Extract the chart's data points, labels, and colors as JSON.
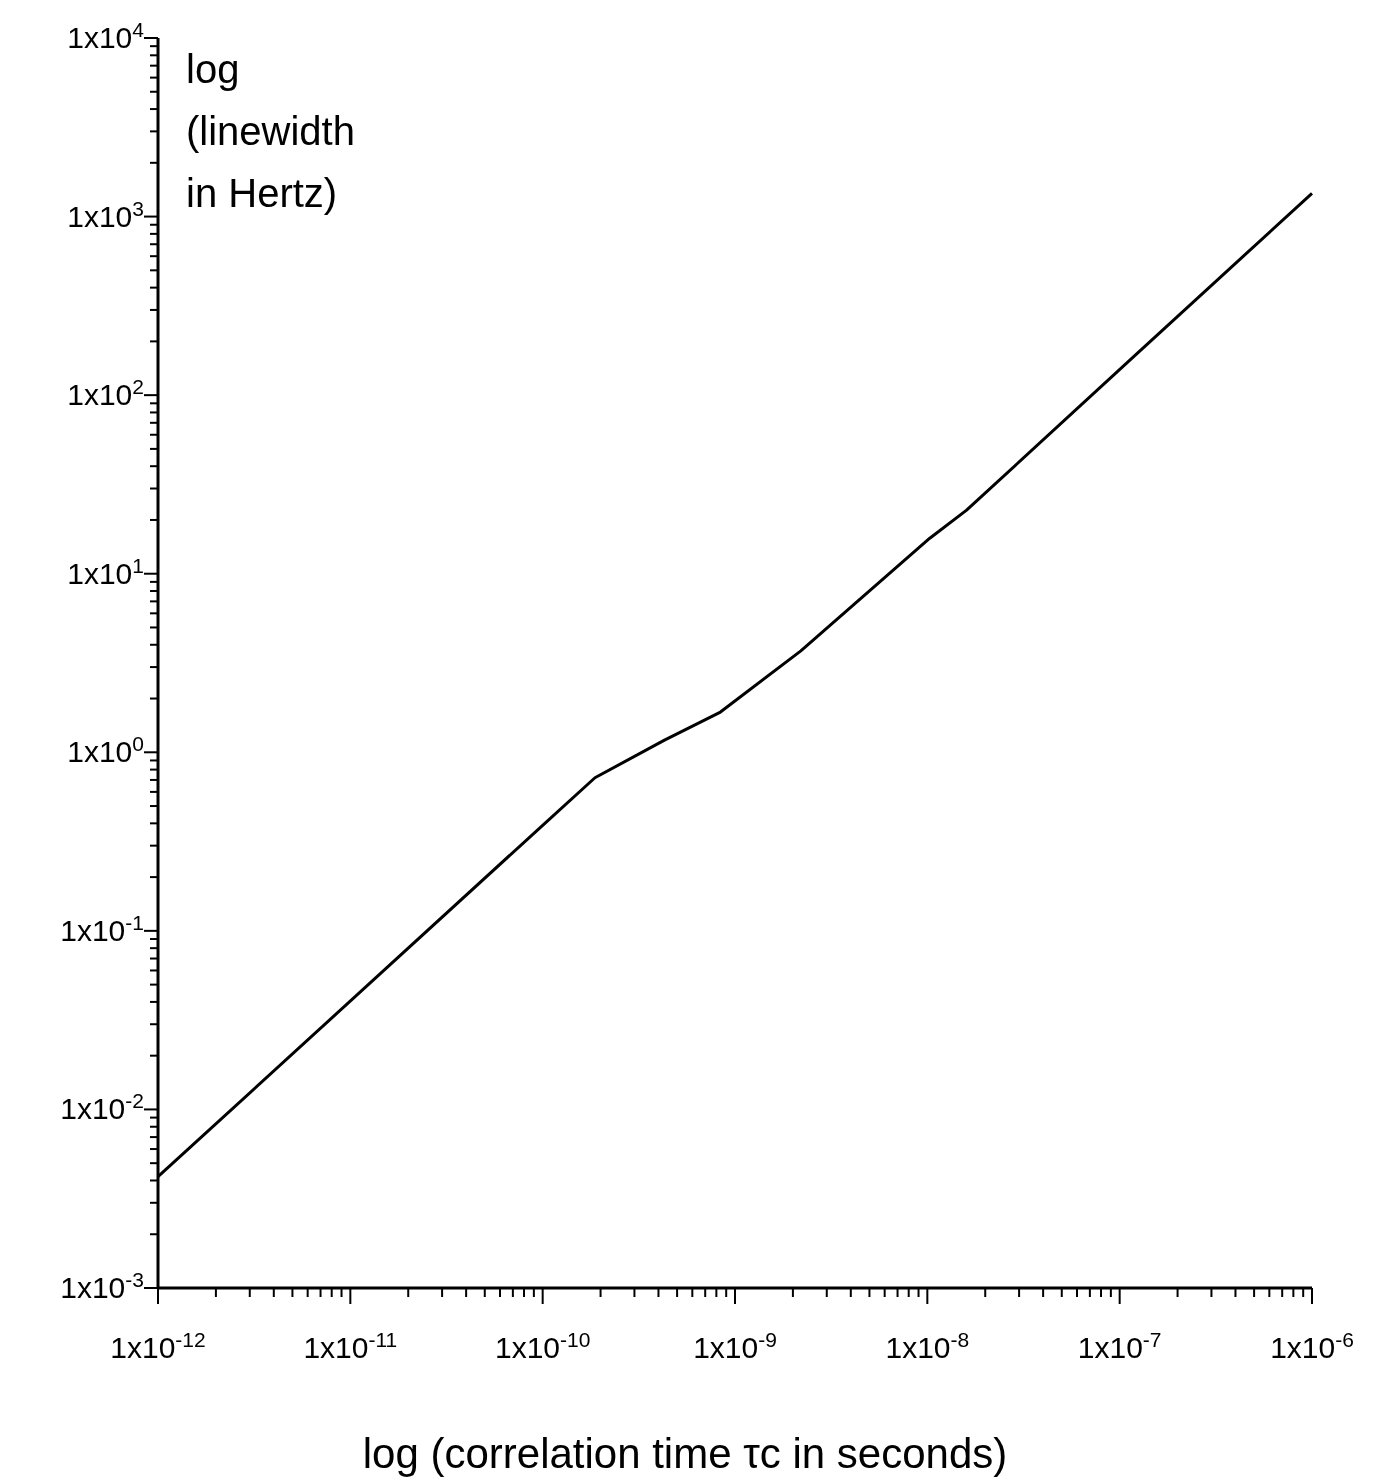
{
  "chart_data": {
    "type": "line",
    "xlabel": "log (correlation time τc in seconds)",
    "ylabel": "log (linewidth in Hertz)",
    "log": "xy",
    "grid": false,
    "marker": "none",
    "line_style": "solid",
    "xlim": [
      1e-12,
      1e-06
    ],
    "ylim": [
      0.001,
      10000.0
    ],
    "x": [
      1e-12,
      1e-10,
      1.87e-10,
      4.3e-10,
      8.4e-10,
      2.2e-09,
      1.03e-08,
      1.6e-08,
      1.13e-07,
      1e-06
    ],
    "series": [
      {
        "color": "#000000",
        "values": [
          0.0042,
          0.39,
          0.72,
          1.17,
          1.68,
          3.7,
          15.8,
          22.7,
          157,
          1350
        ]
      }
    ],
    "xticks": [
      {
        "value": 1e-12,
        "label": "1x10$^{-12}$"
      },
      {
        "value": 1e-11,
        "label": "1x10$^{-11}$"
      },
      {
        "value": 1e-10,
        "label": "1x10$^{-10}$"
      },
      {
        "value": 1e-09,
        "label": "1x10$^{-9}$"
      },
      {
        "value": 1e-08,
        "label": "1x10$^{-8}$"
      },
      {
        "value": 1e-07,
        "label": "1x10$^{-7}$"
      },
      {
        "value": 1e-06,
        "label": "1x10$^{-6}$"
      },
      {
        "value": 2e-12,
        "label": null
      },
      {
        "value": 3e-12,
        "label": null
      },
      {
        "value": 4e-12,
        "label": null
      },
      {
        "value": 5e-12,
        "label": null
      },
      {
        "value": 6e-12,
        "label": null
      },
      {
        "value": 7e-12,
        "label": null
      },
      {
        "value": 8e-12,
        "label": null
      },
      {
        "value": 9e-12,
        "label": null
      },
      {
        "value": 2e-11,
        "label": null
      },
      {
        "value": 3e-11,
        "label": null
      },
      {
        "value": 4e-11,
        "label": null
      },
      {
        "value": 5e-11,
        "label": null
      },
      {
        "value": 6e-11,
        "label": null
      },
      {
        "value": 7e-11,
        "label": null
      },
      {
        "value": 8e-11,
        "label": null
      },
      {
        "value": 9e-11,
        "label": null
      },
      {
        "value": 2e-10,
        "label": null
      },
      {
        "value": 3e-10,
        "label": null
      },
      {
        "value": 4e-10,
        "label": null
      },
      {
        "value": 5e-10,
        "label": null
      },
      {
        "value": 6e-10,
        "label": null
      },
      {
        "value": 7e-10,
        "label": null
      },
      {
        "value": 8e-10,
        "label": null
      },
      {
        "value": 9e-10,
        "label": null
      },
      {
        "value": 2e-09,
        "label": null
      },
      {
        "value": 3e-09,
        "label": null
      },
      {
        "value": 4e-09,
        "label": null
      },
      {
        "value": 5e-09,
        "label": null
      },
      {
        "value": 6e-09,
        "label": null
      },
      {
        "value": 7e-09,
        "label": null
      },
      {
        "value": 8e-09,
        "label": null
      },
      {
        "value": 9e-09,
        "label": null
      },
      {
        "value": 2e-08,
        "label": null
      },
      {
        "value": 3e-08,
        "label": null
      },
      {
        "value": 4e-08,
        "label": null
      },
      {
        "value": 5e-08,
        "label": null
      },
      {
        "value": 6e-08,
        "label": null
      },
      {
        "value": 7e-08,
        "label": null
      },
      {
        "value": 8e-08,
        "label": null
      },
      {
        "value": 9e-08,
        "label": null
      },
      {
        "value": 2e-07,
        "label": null
      },
      {
        "value": 3e-07,
        "label": null
      },
      {
        "value": 4e-07,
        "label": null
      },
      {
        "value": 5e-07,
        "label": null
      },
      {
        "value": 6e-07,
        "label": null
      },
      {
        "value": 7e-07,
        "label": null
      },
      {
        "value": 8e-07,
        "label": null
      },
      {
        "value": 9e-07,
        "label": null
      }
    ],
    "yticks": [
      {
        "value": 0.001,
        "label": "1x10$^{-3}$"
      },
      {
        "value": 0.01,
        "label": "1x10$^{-2}$"
      },
      {
        "value": 0.1,
        "label": "1x10$^{-1}$"
      },
      {
        "value": 1,
        "label": "1x10$^{0}$"
      },
      {
        "value": 10,
        "label": "1x10$^{1}$"
      },
      {
        "value": 100,
        "label": "1x10$^{2}$"
      },
      {
        "value": 1000,
        "label": "1x10$^{3}$"
      },
      {
        "value": 10000,
        "label": "1x10$^{4}$"
      },
      {
        "value": 0.002,
        "label": null
      },
      {
        "value": 0.003,
        "label": null
      },
      {
        "value": 0.004,
        "label": null
      },
      {
        "value": 0.005,
        "label": null
      },
      {
        "value": 0.006,
        "label": null
      },
      {
        "value": 0.007,
        "label": null
      },
      {
        "value": 0.008,
        "label": null
      },
      {
        "value": 0.009,
        "label": null
      },
      {
        "value": 0.02,
        "label": null
      },
      {
        "value": 0.03,
        "label": null
      },
      {
        "value": 0.04,
        "label": null
      },
      {
        "value": 0.05,
        "label": null
      },
      {
        "value": 0.06,
        "label": null
      },
      {
        "value": 0.07,
        "label": null
      },
      {
        "value": 0.08,
        "label": null
      },
      {
        "value": 0.09,
        "label": null
      },
      {
        "value": 0.2,
        "label": null
      },
      {
        "value": 0.3,
        "label": null
      },
      {
        "value": 0.4,
        "label": null
      },
      {
        "value": 0.5,
        "label": null
      },
      {
        "value": 0.6,
        "label": null
      },
      {
        "value": 0.7,
        "label": null
      },
      {
        "value": 0.8,
        "label": null
      },
      {
        "value": 0.9,
        "label": null
      },
      {
        "value": 2,
        "label": null
      },
      {
        "value": 3,
        "label": null
      },
      {
        "value": 4,
        "label": null
      },
      {
        "value": 5,
        "label": null
      },
      {
        "value": 6,
        "label": null
      },
      {
        "value": 7,
        "label": null
      },
      {
        "value": 8,
        "label": null
      },
      {
        "value": 9,
        "label": null
      },
      {
        "value": 20,
        "label": null
      },
      {
        "value": 30,
        "label": null
      },
      {
        "value": 40,
        "label": null
      },
      {
        "value": 50,
        "label": null
      },
      {
        "value": 60,
        "label": null
      },
      {
        "value": 70,
        "label": null
      },
      {
        "value": 80,
        "label": null
      },
      {
        "value": 90,
        "label": null
      },
      {
        "value": 200,
        "label": null
      },
      {
        "value": 300,
        "label": null
      },
      {
        "value": 400,
        "label": null
      },
      {
        "value": 500,
        "label": null
      },
      {
        "value": 600,
        "label": null
      },
      {
        "value": 700,
        "label": null
      },
      {
        "value": 800,
        "label": null
      },
      {
        "value": 900,
        "label": null
      },
      {
        "value": 2000,
        "label": null
      },
      {
        "value": 3000,
        "label": null
      },
      {
        "value": 4000,
        "label": null
      },
      {
        "value": 5000,
        "label": null
      },
      {
        "value": 6000,
        "label": null
      },
      {
        "value": 7000,
        "label": null
      },
      {
        "value": 8000,
        "label": null
      },
      {
        "value": 9000,
        "label": null
      }
    ]
  }
}
